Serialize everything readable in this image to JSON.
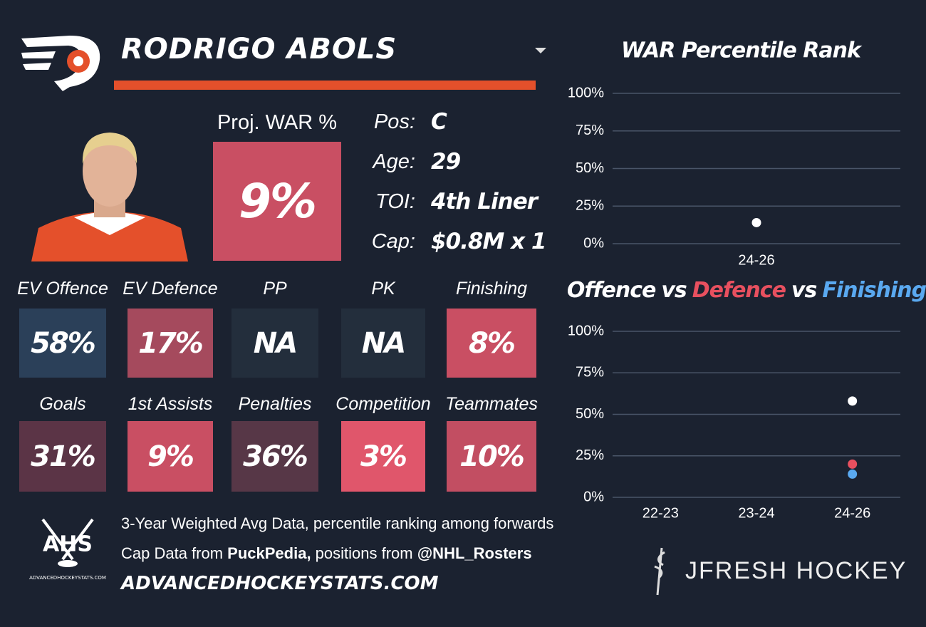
{
  "header": {
    "player_name": "RODRIGO ABOLS"
  },
  "proj_war": {
    "label": "Proj. WAR %",
    "value": "9%",
    "color": "#c94f63"
  },
  "info": [
    {
      "label": "Pos:",
      "value": "C"
    },
    {
      "label": "Age:",
      "value": "29"
    },
    {
      "label": "TOI:",
      "value": "4th Liner"
    },
    {
      "label": "Cap:",
      "value": "$0.8M x 1"
    }
  ],
  "tiles": [
    [
      {
        "label": "EV Offence",
        "value": "58%",
        "color": "#2b4059"
      },
      {
        "label": "EV Defence",
        "value": "17%",
        "color": "#a54a5d"
      },
      {
        "label": "PP",
        "value": "NA",
        "color": "#232e3c"
      },
      {
        "label": "PK",
        "value": "NA",
        "color": "#232e3c"
      },
      {
        "label": "Finishing",
        "value": "8%",
        "color": "#c94f63"
      }
    ],
    [
      {
        "label": "Goals",
        "value": "31%",
        "color": "#5b3446"
      },
      {
        "label": "1st Assists",
        "value": "9%",
        "color": "#c94f63"
      },
      {
        "label": "Penalties",
        "value": "36%",
        "color": "#573747"
      },
      {
        "label": "Competition",
        "value": "3%",
        "color": "#e0566b"
      },
      {
        "label": "Teammates",
        "value": "10%",
        "color": "#c24e62"
      }
    ]
  ],
  "footer": {
    "line1": "3-Year Weighted Avg Data, percentile ranking among forwards",
    "line2": [
      "Cap Data from ",
      "PuckPedia,",
      " positions from ",
      "@NHL_Rosters"
    ],
    "line3": "ADVANCEDHOCKEYSTATS.COM",
    "ahs_logo": "AHS",
    "ahs_caption": "ADVANCEDHOCKEYSTATS.COM",
    "brand": "JFRESH HOCKEY"
  },
  "chart_data": [
    {
      "type": "scatter",
      "title": "WAR Percentile Rank",
      "categories": [
        "24-26"
      ],
      "values": [
        14
      ],
      "color": "#ffffff",
      "ylim": [
        0,
        100
      ],
      "yticks": [
        {
          "value": 0,
          "label": "0%"
        },
        {
          "value": 25,
          "label": "25%"
        },
        {
          "value": 50,
          "label": "50%"
        },
        {
          "value": 75,
          "label": "75%"
        },
        {
          "value": 100,
          "label": "100%"
        }
      ],
      "grid": true
    },
    {
      "type": "scatter",
      "title_joiner": "vs",
      "categories": [
        "22-23",
        "23-24",
        "24-26"
      ],
      "series": [
        {
          "name": "Offence",
          "color": "#ffffff",
          "values": [
            null,
            null,
            58
          ]
        },
        {
          "name": "Defence",
          "color": "#e8505f",
          "values": [
            null,
            null,
            20
          ]
        },
        {
          "name": "Finishing",
          "color": "#5aa9f0",
          "values": [
            null,
            null,
            14
          ]
        }
      ],
      "ylim": [
        0,
        100
      ],
      "yticks": [
        {
          "value": 0,
          "label": "0%"
        },
        {
          "value": 25,
          "label": "25%"
        },
        {
          "value": 50,
          "label": "50%"
        },
        {
          "value": 75,
          "label": "75%"
        },
        {
          "value": 100,
          "label": "100%"
        }
      ],
      "grid": true
    }
  ]
}
